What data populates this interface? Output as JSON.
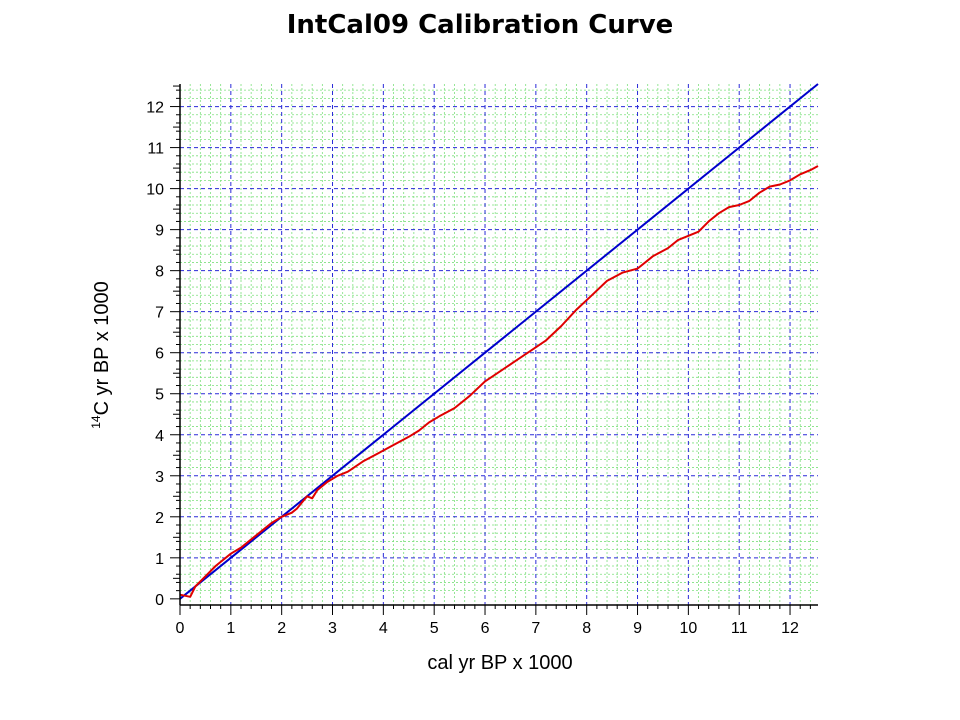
{
  "title": "IntCal09 Calibration Curve",
  "chart_data": {
    "type": "line",
    "title": "IntCal09 Calibration Curve",
    "xlabel": "cal yr BP x 1000",
    "ylabel_sup": "14",
    "ylabel_main": "C yr BP x 1000",
    "xlim": [
      0,
      12.55
    ],
    "ylim": [
      -0.15,
      12.55
    ],
    "xticks": [
      "0",
      "1",
      "2",
      "3",
      "4",
      "5",
      "6",
      "7",
      "8",
      "9",
      "10",
      "11",
      "12"
    ],
    "yticks": [
      "0",
      "1",
      "2",
      "3",
      "4",
      "5",
      "6",
      "7",
      "8",
      "9",
      "10",
      "11",
      "12"
    ],
    "grid": true,
    "colors": {
      "major_grid": "#2a2ad8",
      "minor_grid": "#7ee07e",
      "axis": "#000000"
    },
    "series": [
      {
        "color": "#0000cc",
        "x": [
          0,
          12.55
        ],
        "y": [
          0,
          12.55
        ]
      },
      {
        "color": "#e00000",
        "x": [
          0,
          0.2,
          0.3,
          0.5,
          0.7,
          1.0,
          1.2,
          1.5,
          1.8,
          2.0,
          2.2,
          2.3,
          2.4,
          2.5,
          2.6,
          2.7,
          2.9,
          3.1,
          3.3,
          3.6,
          3.9,
          4.2,
          4.5,
          4.7,
          4.9,
          5.1,
          5.4,
          5.7,
          6.0,
          6.3,
          6.6,
          6.9,
          7.2,
          7.5,
          7.8,
          8.1,
          8.4,
          8.7,
          9.0,
          9.3,
          9.6,
          9.8,
          10.0,
          10.2,
          10.4,
          10.6,
          10.8,
          11.0,
          11.2,
          11.4,
          11.6,
          11.8,
          12.0,
          12.2,
          12.4,
          12.55
        ],
        "y": [
          0.1,
          0.05,
          0.3,
          0.55,
          0.8,
          1.1,
          1.25,
          1.55,
          1.85,
          2.0,
          2.1,
          2.2,
          2.35,
          2.5,
          2.45,
          2.65,
          2.85,
          3.0,
          3.1,
          3.35,
          3.55,
          3.75,
          3.95,
          4.1,
          4.3,
          4.45,
          4.65,
          4.95,
          5.3,
          5.55,
          5.8,
          6.05,
          6.3,
          6.65,
          7.05,
          7.4,
          7.75,
          7.95,
          8.05,
          8.35,
          8.55,
          8.75,
          8.85,
          8.95,
          9.2,
          9.4,
          9.55,
          9.6,
          9.7,
          9.9,
          10.05,
          10.1,
          10.2,
          10.35,
          10.45,
          10.55
        ]
      }
    ]
  }
}
